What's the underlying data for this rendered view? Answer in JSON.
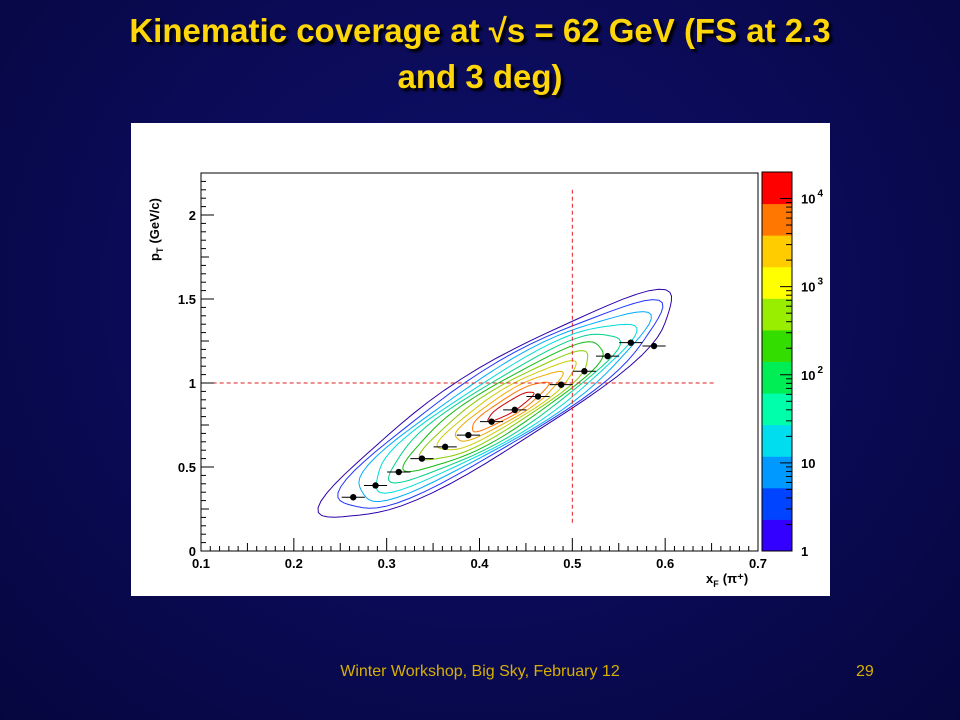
{
  "slide": {
    "title_line1": "Kinematic coverage at √s = 62 GeV (FS at 2.3",
    "title_line2": "and 3 deg)",
    "footer": "Winter Workshop, Big Sky, February 12",
    "page_number": "29"
  },
  "chart_data": {
    "type": "scatter",
    "overlay": "contour",
    "xlabel_main": "x",
    "xlabel_sub": "F",
    "xlabel_rest": "(π⁺)",
    "ylabel_main": "p",
    "ylabel_sub": "T",
    "ylabel_rest": "(GeV/c)",
    "xlim": [
      0.1,
      0.7
    ],
    "ylim": [
      0,
      2.25
    ],
    "x_ticks": [
      "0.1",
      "0.2",
      "0.3",
      "0.4",
      "0.5",
      "0.6",
      "0.7"
    ],
    "y_ticks": [
      "0",
      "0.5",
      "1",
      "1.5",
      "2"
    ],
    "points": [
      {
        "x": 0.264,
        "y": 0.32
      },
      {
        "x": 0.288,
        "y": 0.39
      },
      {
        "x": 0.313,
        "y": 0.47
      },
      {
        "x": 0.338,
        "y": 0.55
      },
      {
        "x": 0.363,
        "y": 0.62
      },
      {
        "x": 0.388,
        "y": 0.69
      },
      {
        "x": 0.413,
        "y": 0.77
      },
      {
        "x": 0.438,
        "y": 0.84
      },
      {
        "x": 0.463,
        "y": 0.92
      },
      {
        "x": 0.488,
        "y": 0.99
      },
      {
        "x": 0.513,
        "y": 1.07
      },
      {
        "x": 0.538,
        "y": 1.16
      },
      {
        "x": 0.563,
        "y": 1.24
      },
      {
        "x": 0.588,
        "y": 1.22
      }
    ],
    "point_xerr": 0.0125,
    "reference_lines": {
      "x": 0.5,
      "y": 1.0
    },
    "colorbar": {
      "scale": "log",
      "min": 1,
      "max": 20000,
      "labels": [
        {
          "base": "1",
          "exp": ""
        },
        {
          "base": "10",
          "exp": ""
        },
        {
          "base": "10",
          "exp": "2"
        },
        {
          "base": "10",
          "exp": "3"
        },
        {
          "base": "10",
          "exp": "4"
        }
      ],
      "colors": [
        "#3300ff",
        "#0044ff",
        "#0099ff",
        "#00ddee",
        "#00ffaa",
        "#00ee55",
        "#33dd00",
        "#99ee00",
        "#ffff00",
        "#ffcc00",
        "#ff7700",
        "#ff0000"
      ]
    }
  }
}
